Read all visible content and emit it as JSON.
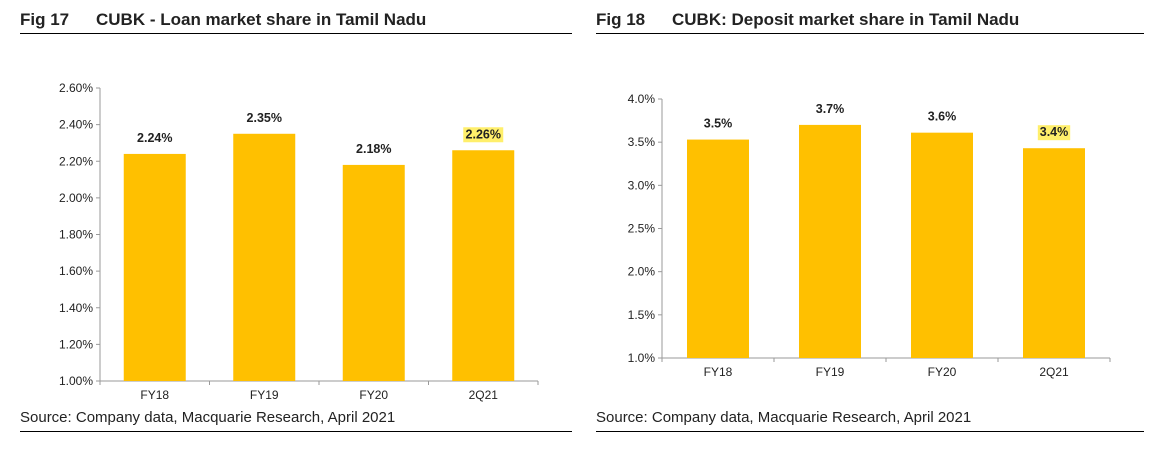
{
  "charts": [
    {
      "fig_number": "Fig 17",
      "title": "CUBK - Loan market share in Tamil Nadu",
      "source": "Source: Company data, Macquarie Research, April 2021"
    },
    {
      "fig_number": "Fig 18",
      "title": "CUBK: Deposit market share in Tamil Nadu",
      "source": "Source: Company data, Macquarie Research, April 2021"
    }
  ],
  "colors": {
    "bar": "#FFC000",
    "highlight": "#FFEF6B",
    "axis": "#9a9a9a"
  },
  "chart_data": [
    {
      "type": "bar",
      "title": "CUBK - Loan market share in Tamil Nadu",
      "categories": [
        "FY18",
        "FY19",
        "FY20",
        "2Q21"
      ],
      "values": [
        2.24,
        2.35,
        2.18,
        2.26
      ],
      "value_labels": [
        "2.24%",
        "2.35%",
        "2.18%",
        "2.26%"
      ],
      "highlighted_label_index": 3,
      "ylim": [
        1.0,
        2.6
      ],
      "yticks": [
        1.0,
        1.2,
        1.4,
        1.6,
        1.8,
        2.0,
        2.2,
        2.4,
        2.6
      ],
      "ytick_labels": [
        "1.00%",
        "1.20%",
        "1.40%",
        "1.60%",
        "1.80%",
        "2.00%",
        "2.20%",
        "2.40%",
        "2.60%"
      ],
      "xlabel": "",
      "ylabel": "",
      "grid": false,
      "legend": "none"
    },
    {
      "type": "bar",
      "title": "CUBK: Deposit market share in Tamil Nadu",
      "categories": [
        "FY18",
        "FY19",
        "FY20",
        "2Q21"
      ],
      "values": [
        3.53,
        3.7,
        3.61,
        3.43
      ],
      "value_labels": [
        "3.5%",
        "3.7%",
        "3.6%",
        "3.4%"
      ],
      "highlighted_label_index": 3,
      "ylim": [
        1.0,
        4.0
      ],
      "yticks": [
        1.0,
        1.5,
        2.0,
        2.5,
        3.0,
        3.5,
        4.0
      ],
      "ytick_labels": [
        "1.0%",
        "1.5%",
        "2.0%",
        "2.5%",
        "3.0%",
        "3.5%",
        "4.0%"
      ],
      "xlabel": "",
      "ylabel": "",
      "grid": false,
      "legend": "none"
    }
  ]
}
